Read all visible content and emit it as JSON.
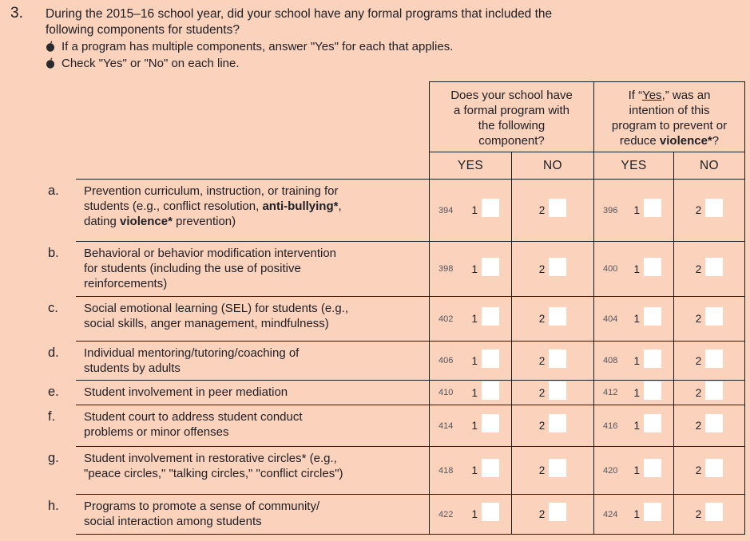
{
  "colors": {
    "background": "#fbd2bb",
    "line": "#1c1c1e",
    "text": "#202027",
    "code": "#55555a",
    "checkbox": "#ffffff",
    "bullet_icon": "#2a2a2e"
  },
  "question": {
    "number": "3.",
    "text": "During the 2015–16 school year, did your school have any formal programs that included the\nfollowing components for students?",
    "bullets": [
      "If a program has multiple components, answer \"Yes\" for each that applies.",
      "Check \"Yes\" or \"No\" on each line."
    ]
  },
  "table": {
    "group_headers": {
      "program": [
        {
          "t": "Does your school have\na formal program with\nthe following\ncomponent?"
        }
      ],
      "violence": [
        {
          "t": "If “"
        },
        {
          "t": "Yes",
          "u": true
        },
        {
          "t": ",” was an\nintention of this\nprogram to prevent or\nreduce "
        },
        {
          "t": "violence*",
          "b": true
        },
        {
          "t": "?"
        }
      ]
    },
    "col_headers": [
      "YES",
      "NO",
      "YES",
      "NO"
    ],
    "answer_values": {
      "yes": "1",
      "no": "2"
    },
    "rows": [
      {
        "letter": "a.",
        "desc": [
          {
            "t": "Prevention curriculum, instruction, or training for\nstudents (e.g., conflict resolution, "
          },
          {
            "t": "anti-bullying*",
            "b": true
          },
          {
            "t": ",\ndating "
          },
          {
            "t": "violence*",
            "b": true
          },
          {
            "t": " prevention)"
          }
        ],
        "code_program": "394",
        "code_violence": "396"
      },
      {
        "letter": "b.",
        "desc": [
          {
            "t": "Behavioral or behavior modification intervention\nfor students (including the use of positive\nreinforcements)"
          }
        ],
        "code_program": "398",
        "code_violence": "400"
      },
      {
        "letter": "c.",
        "desc": [
          {
            "t": "Social emotional learning (SEL) for students (e.g.,\nsocial skills, anger management, mindfulness)"
          }
        ],
        "code_program": "402",
        "code_violence": "404"
      },
      {
        "letter": "d.",
        "desc": [
          {
            "t": "Individual mentoring/tutoring/coaching of\nstudents by adults"
          }
        ],
        "code_program": "406",
        "code_violence": "408"
      },
      {
        "letter": "e.",
        "desc": [
          {
            "t": "Student involvement in peer mediation"
          }
        ],
        "code_program": "410",
        "code_violence": "412"
      },
      {
        "letter": "f.",
        "desc": [
          {
            "t": "Student court to address student conduct\nproblems or minor offenses"
          }
        ],
        "code_program": "414",
        "code_violence": "416"
      },
      {
        "letter": "g.",
        "desc": [
          {
            "t": "Student involvement in restorative circles* (e.g.,\n\"peace circles,\" \"talking circles,\" \"conflict circles\")"
          }
        ],
        "code_program": "418",
        "code_violence": "420"
      },
      {
        "letter": "h.",
        "desc": [
          {
            "t": "Programs to promote a sense of community/\nsocial interaction among students"
          }
        ],
        "code_program": "422",
        "code_violence": "424"
      }
    ]
  }
}
